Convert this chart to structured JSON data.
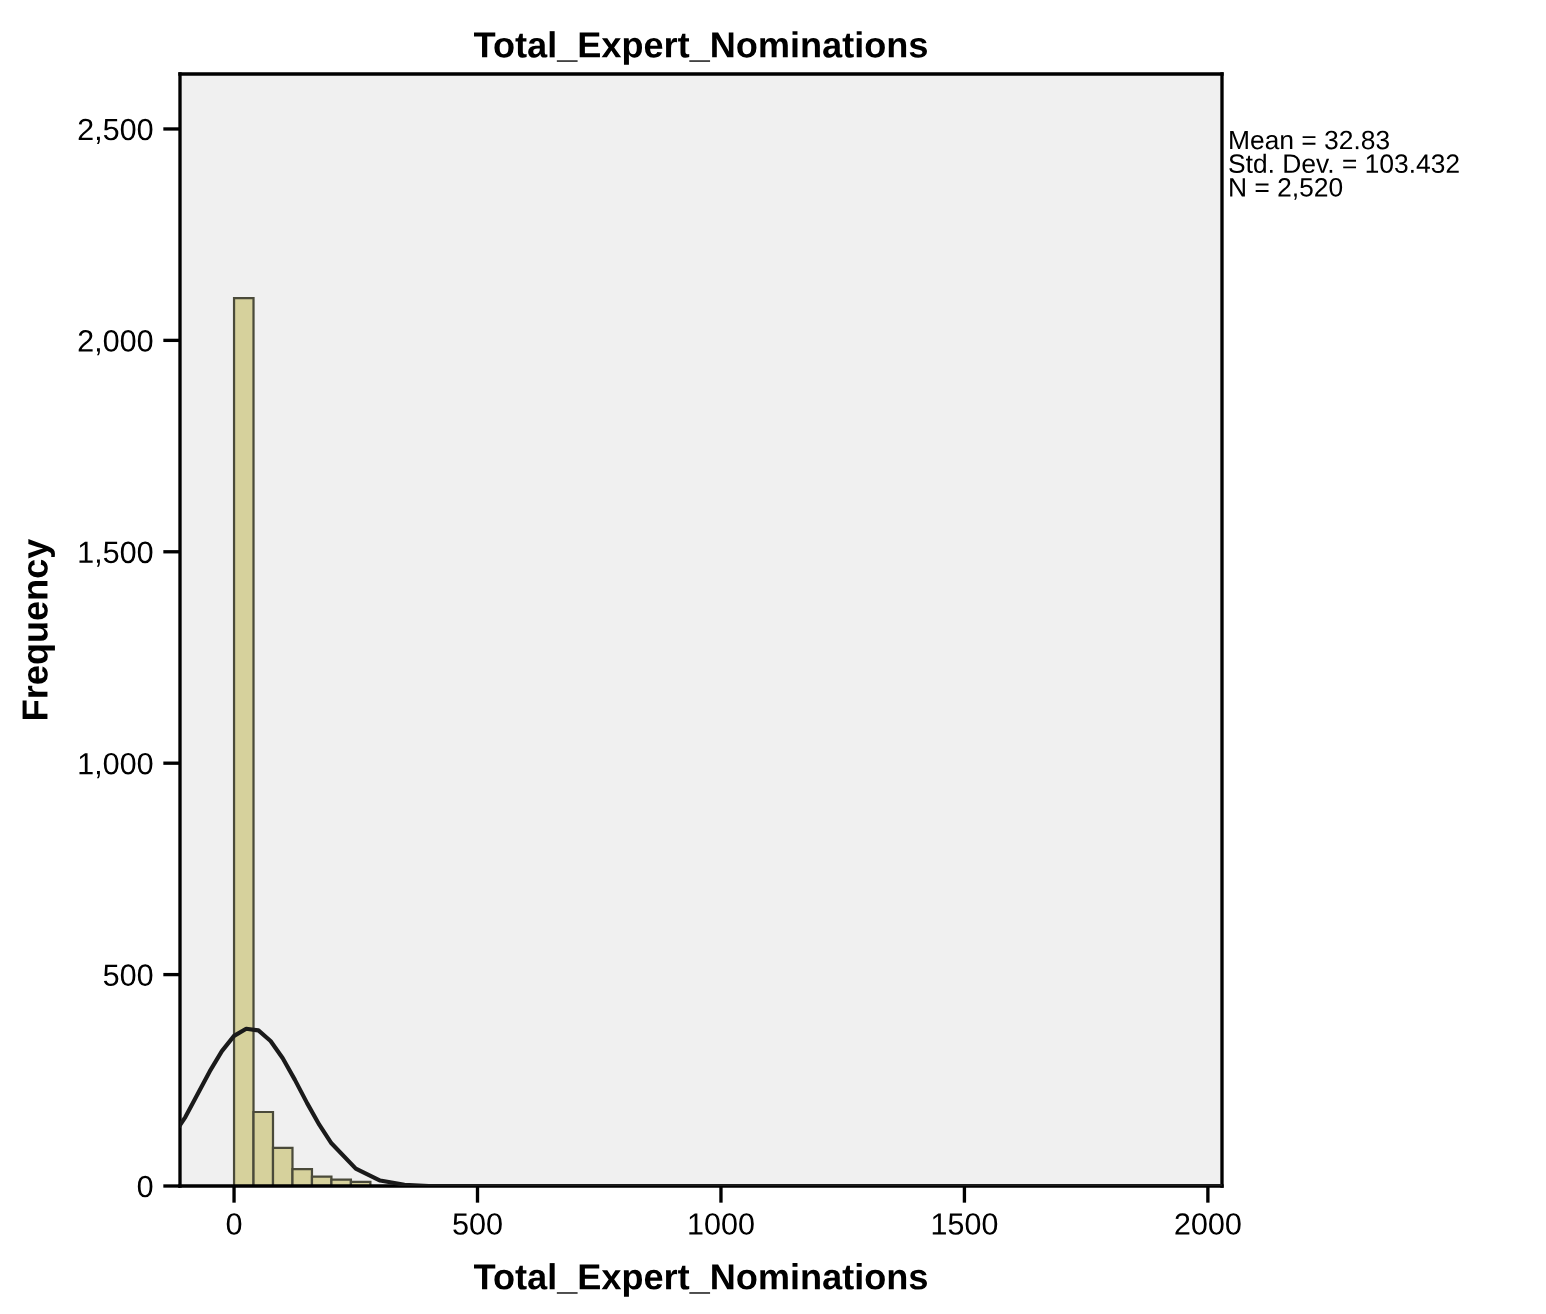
{
  "chart_data": {
    "type": "histogram",
    "title": "Total_Expert_Nominations",
    "xlabel": "Total_Expert_Nominations",
    "ylabel": "Frequency",
    "xlim": [
      -111,
      2029
    ],
    "ylim": [
      0,
      2630
    ],
    "xticks": [
      0,
      500,
      1000,
      1500,
      2000
    ],
    "yticks": [
      0,
      500,
      {
        "value": 1000,
        "label": "1,000"
      },
      {
        "value": 1500,
        "label": "1,500"
      },
      {
        "value": 2000,
        "label": "2,000"
      },
      {
        "value": 2500,
        "label": "2,500"
      }
    ],
    "grid": false,
    "legend": false,
    "annotations": [
      "Mean = 32.83\nStd. Dev. = 103.432\nN = 2,520"
    ],
    "series": [
      {
        "type": "histogram",
        "color": "#d6d19c",
        "bins": [
          0,
          40,
          80,
          120,
          160,
          200,
          240,
          280,
          320,
          360,
          400,
          440,
          480,
          520,
          560,
          600,
          640,
          680,
          720,
          760,
          800,
          840,
          880,
          920,
          960,
          1000,
          1040,
          1080,
          1120,
          1160,
          1200,
          1240,
          1280,
          1320,
          1360,
          1400,
          1440,
          1480,
          1520,
          1560,
          1600,
          1640,
          1680,
          1720,
          1760,
          1800,
          1840,
          1880,
          1920,
          1960,
          2000
        ],
        "values": [
          2100,
          175,
          90,
          40,
          22,
          15,
          10,
          null,
          0,
          0,
          0,
          0,
          0,
          0,
          0,
          0,
          0,
          0,
          0,
          0,
          0,
          0,
          0,
          0,
          0,
          0,
          0,
          0,
          0,
          0,
          0,
          0,
          0,
          0,
          0,
          0,
          0,
          0,
          0,
          0,
          0,
          0,
          0,
          0,
          0,
          0,
          0,
          0,
          0,
          0
        ]
      },
      {
        "type": "line",
        "color": "#1a1a1a",
        "x": [
          -111,
          -100,
          -75,
          -50,
          -25,
          0,
          25,
          50,
          75,
          100,
          125,
          150,
          175,
          200,
          250,
          300,
          350,
          400,
          500,
          1000,
          1500,
          2029
        ],
        "values": [
          144,
          163,
          217,
          271,
          319,
          355,
          372,
          368,
          343,
          302,
          251,
          196,
          145,
          101,
          41,
          13,
          3,
          0,
          0,
          0,
          0,
          0
        ]
      }
    ]
  }
}
